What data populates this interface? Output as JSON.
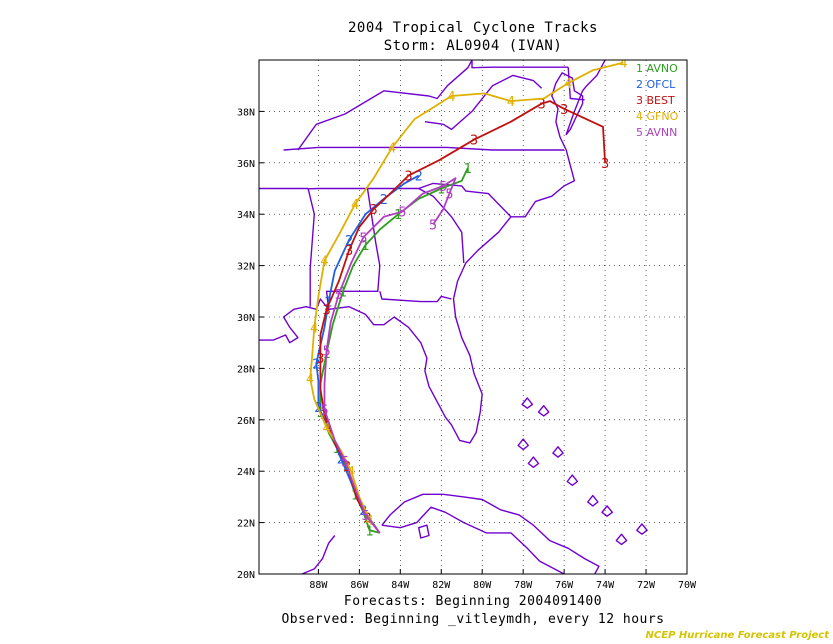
{
  "title_line1": "2004 Tropical Cyclone Tracks",
  "title_line2": "Storm: AL0904 (IVAN)",
  "footer_line1": "Forecasts: Beginning 2004091400",
  "footer_line2": "Observed: Beginning _vitleymdh, every 12 hours",
  "credit": "NCEP Hurricane Forecast Project",
  "axes": {
    "lat_labels": [
      "38N",
      "36N",
      "34N",
      "32N",
      "30N",
      "28N",
      "26N",
      "24N",
      "22N",
      "20N"
    ],
    "lon_labels": [
      "88W",
      "86W",
      "84W",
      "82W",
      "80W",
      "78W",
      "76W",
      "74W",
      "72W",
      "70W"
    ]
  },
  "legend": [
    {
      "num": "1",
      "name": "AVNO",
      "color": "#2e9e1e"
    },
    {
      "num": "2",
      "name": "OFCL",
      "color": "#1f5fe0"
    },
    {
      "num": "3",
      "name": "BEST",
      "color": "#c01010"
    },
    {
      "num": "4",
      "name": "GFNO",
      "color": "#e0b000"
    },
    {
      "num": "5",
      "name": "AVNN",
      "color": "#b040c0"
    }
  ],
  "map_colors": {
    "coast": "#7000d0",
    "state_lines": "#6a00d0",
    "grid": "#000000"
  },
  "tracks": [
    {
      "id": "1",
      "color": "#2e9e1e",
      "points": [
        [
          -85.0,
          21.6
        ],
        [
          -85.5,
          21.7
        ],
        [
          -85.8,
          22.4
        ],
        [
          -86.2,
          23.1
        ],
        [
          -86.7,
          24.3
        ],
        [
          -87.1,
          24.9
        ],
        [
          -87.5,
          25.5
        ],
        [
          -87.9,
          26.3
        ],
        [
          -87.9,
          27.4
        ],
        [
          -87.6,
          28.6
        ],
        [
          -87.3,
          29.7
        ],
        [
          -86.8,
          31.0
        ],
        [
          -86.3,
          32.0
        ],
        [
          -85.7,
          32.8
        ],
        [
          -85.0,
          33.4
        ],
        [
          -84.1,
          34.0
        ],
        [
          -83.1,
          34.6
        ],
        [
          -82.0,
          35.0
        ],
        [
          -81.0,
          35.3
        ],
        [
          -80.7,
          35.8
        ]
      ]
    },
    {
      "id": "2",
      "color": "#1f5fe0",
      "points": [
        [
          -85.0,
          21.6
        ],
        [
          -85.8,
          22.5
        ],
        [
          -86.2,
          23.2
        ],
        [
          -86.9,
          24.5
        ],
        [
          -87.4,
          25.5
        ],
        [
          -88.0,
          26.5
        ],
        [
          -88.0,
          27.5
        ],
        [
          -88.1,
          28.2
        ],
        [
          -87.7,
          29.6
        ],
        [
          -87.5,
          30.6
        ],
        [
          -87.2,
          31.8
        ],
        [
          -86.5,
          33.0
        ],
        [
          -85.7,
          34.0
        ],
        [
          -84.8,
          34.6
        ],
        [
          -83.8,
          35.2
        ],
        [
          -83.1,
          35.5
        ]
      ]
    },
    {
      "id": "3",
      "color": "#c01010",
      "points": [
        [
          -85.0,
          21.6
        ],
        [
          -85.6,
          22.2
        ],
        [
          -86.1,
          22.9
        ],
        [
          -86.6,
          24.2
        ],
        [
          -87.2,
          25.1
        ],
        [
          -87.7,
          26.2
        ],
        [
          -87.9,
          27.2
        ],
        [
          -87.9,
          28.4
        ],
        [
          -87.9,
          29.3
        ],
        [
          -87.6,
          30.3
        ],
        [
          -87.0,
          31.4
        ],
        [
          -86.5,
          32.6
        ],
        [
          -86.0,
          33.5
        ],
        [
          -85.3,
          34.2
        ],
        [
          -84.5,
          34.8
        ],
        [
          -83.6,
          35.5
        ],
        [
          -82.1,
          36.1
        ],
        [
          -80.4,
          36.9
        ],
        [
          -78.6,
          37.6
        ],
        [
          -77.1,
          38.3
        ],
        [
          -76.7,
          38.4
        ],
        [
          -76.0,
          38.1
        ],
        [
          -74.1,
          37.4
        ],
        [
          -74.0,
          36.0
        ]
      ]
    },
    {
      "id": "4",
      "color": "#e0b000",
      "points": [
        [
          -85.0,
          21.6
        ],
        [
          -85.5,
          22.1
        ],
        [
          -86.0,
          23.0
        ],
        [
          -86.4,
          24.0
        ],
        [
          -86.9,
          24.8
        ],
        [
          -87.6,
          25.7
        ],
        [
          -88.2,
          26.8
        ],
        [
          -88.4,
          27.6
        ],
        [
          -88.3,
          28.5
        ],
        [
          -88.2,
          29.6
        ],
        [
          -88.0,
          30.8
        ],
        [
          -87.7,
          32.2
        ],
        [
          -87.0,
          33.2
        ],
        [
          -86.2,
          34.4
        ],
        [
          -85.3,
          35.4
        ],
        [
          -84.4,
          36.6
        ],
        [
          -83.3,
          37.7
        ],
        [
          -81.5,
          38.6
        ],
        [
          -79.9,
          38.7
        ],
        [
          -78.6,
          38.4
        ],
        [
          -77.0,
          38.5
        ],
        [
          -75.8,
          39.1
        ],
        [
          -74.6,
          39.6
        ],
        [
          -73.1,
          39.9
        ]
      ]
    },
    {
      "id": "5",
      "color": "#b040c0",
      "points": [
        [
          -85.0,
          21.6
        ],
        [
          -85.7,
          22.3
        ],
        [
          -86.2,
          23.3
        ],
        [
          -86.7,
          24.4
        ],
        [
          -87.2,
          25.2
        ],
        [
          -87.7,
          26.4
        ],
        [
          -87.7,
          27.4
        ],
        [
          -87.6,
          28.7
        ],
        [
          -87.4,
          29.8
        ],
        [
          -87.0,
          30.9
        ],
        [
          -86.4,
          32.1
        ],
        [
          -85.8,
          33.1
        ],
        [
          -84.8,
          33.9
        ],
        [
          -83.9,
          34.1
        ],
        [
          -82.9,
          34.8
        ],
        [
          -81.9,
          35.1
        ],
        [
          -81.3,
          35.4
        ],
        [
          -81.6,
          34.8
        ],
        [
          -81.9,
          34.2
        ],
        [
          -82.4,
          33.6
        ]
      ]
    }
  ]
}
